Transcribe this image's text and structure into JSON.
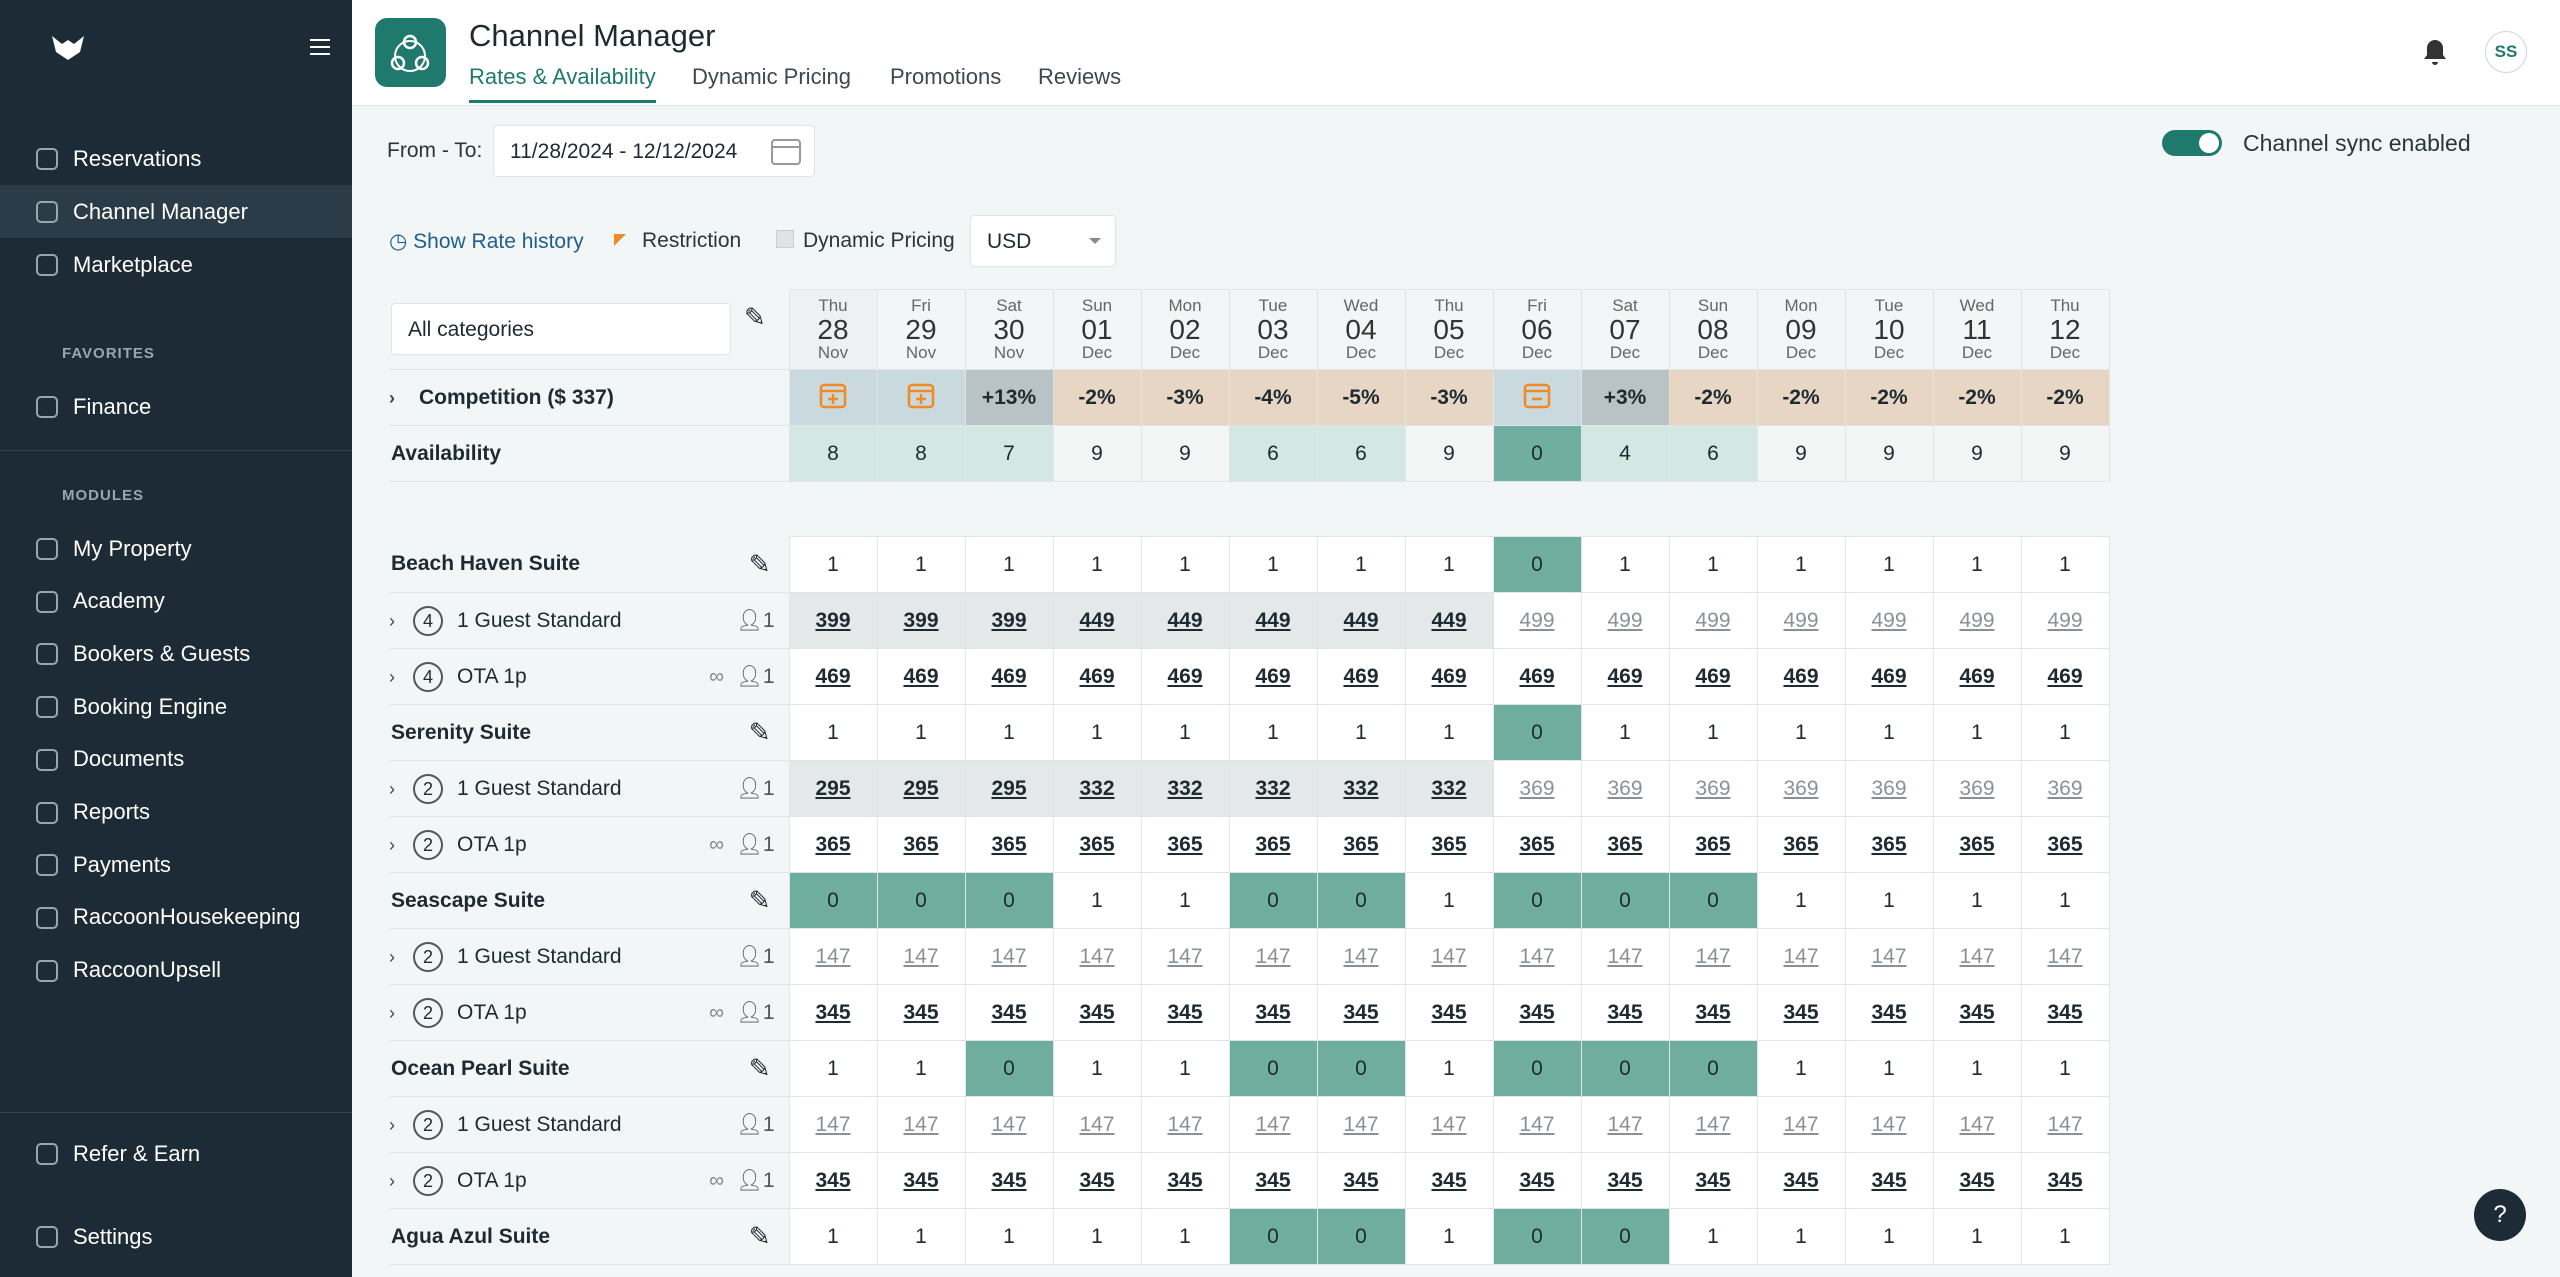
{
  "sidebar": {
    "nav": [
      "Reservations",
      "Channel Manager",
      "Marketplace"
    ],
    "favorites_label": "FAVORITES",
    "favorites": [
      "Finance"
    ],
    "modules_label": "MODULES",
    "modules": [
      "My Property",
      "Academy",
      "Bookers & Guests",
      "Booking Engine",
      "Documents",
      "Reports",
      "Payments",
      "RaccoonHousekeeping",
      "RaccoonUpsell"
    ],
    "bottom": [
      "Refer & Earn",
      "Settings"
    ]
  },
  "header": {
    "title": "Channel Manager",
    "tabs": [
      "Rates & Availability",
      "Dynamic Pricing",
      "Promotions",
      "Reviews"
    ],
    "avatar": "SS"
  },
  "toolbar": {
    "from_to_label": "From - To:",
    "date_range": "11/28/2024 - 12/12/2024",
    "sync_label": "Channel sync enabled",
    "rate_history": "Show Rate history",
    "restriction": "Restriction",
    "dynamic_pricing": "Dynamic Pricing",
    "currency": "USD",
    "category_filter": "All categories"
  },
  "grid": {
    "weekdays": [
      "Thu",
      "Fri",
      "Sat",
      "Sun",
      "Mon",
      "Tue",
      "Wed",
      "Thu",
      "Fri",
      "Sat",
      "Sun",
      "Mon",
      "Tue",
      "Wed",
      "Thu"
    ],
    "days": [
      "28",
      "29",
      "30",
      "01",
      "02",
      "03",
      "04",
      "05",
      "06",
      "07",
      "08",
      "09",
      "10",
      "11",
      "12"
    ],
    "months": [
      "Nov",
      "Nov",
      "Nov",
      "Dec",
      "Dec",
      "Dec",
      "Dec",
      "Dec",
      "Dec",
      "Dec",
      "Dec",
      "Dec",
      "Dec",
      "Dec",
      "Dec"
    ],
    "competition": {
      "label": "Competition ($ 337)",
      "values": [
        null,
        null,
        13,
        -2,
        -3,
        -4,
        -5,
        -3,
        null,
        3,
        -2,
        -2,
        -2,
        -2,
        -2
      ],
      "value_labels": [
        null,
        null,
        "+13%",
        "-2%",
        "-3%",
        "-4%",
        "-5%",
        "-3%",
        null,
        "+3%",
        "-2%",
        "-2%",
        "-2%",
        "-2%",
        "-2%"
      ]
    },
    "availability": {
      "label": "Availability",
      "values": [
        8,
        8,
        7,
        9,
        9,
        6,
        6,
        9,
        0,
        4,
        6,
        9,
        9,
        9,
        9
      ]
    },
    "rooms": [
      {
        "name": "Beach Haven Suite",
        "values": [
          1,
          1,
          1,
          1,
          1,
          1,
          1,
          1,
          0,
          1,
          1,
          1,
          1,
          1,
          1
        ],
        "rates": [
          {
            "occupancy": 4,
            "name": "1 Guest Standard",
            "guests": 1,
            "values": [
              399,
              399,
              399,
              449,
              449,
              449,
              449,
              449,
              499,
              499,
              499,
              499,
              499,
              499,
              499
            ]
          },
          {
            "occupancy": 4,
            "name": "OTA 1p",
            "guests": 1,
            "values": [
              469,
              469,
              469,
              469,
              469,
              469,
              469,
              469,
              469,
              469,
              469,
              469,
              469,
              469,
              469
            ]
          }
        ]
      },
      {
        "name": "Serenity Suite",
        "values": [
          1,
          1,
          1,
          1,
          1,
          1,
          1,
          1,
          0,
          1,
          1,
          1,
          1,
          1,
          1
        ],
        "rates": [
          {
            "occupancy": 2,
            "name": "1 Guest Standard",
            "guests": 1,
            "values": [
              295,
              295,
              295,
              332,
              332,
              332,
              332,
              332,
              369,
              369,
              369,
              369,
              369,
              369,
              369
            ]
          },
          {
            "occupancy": 2,
            "name": "OTA 1p",
            "guests": 1,
            "values": [
              365,
              365,
              365,
              365,
              365,
              365,
              365,
              365,
              365,
              365,
              365,
              365,
              365,
              365,
              365
            ]
          }
        ]
      },
      {
        "name": "Seascape Suite",
        "values": [
          0,
          0,
          0,
          1,
          1,
          0,
          0,
          1,
          0,
          0,
          0,
          1,
          1,
          1,
          1
        ],
        "rates": [
          {
            "occupancy": 2,
            "name": "1 Guest Standard",
            "guests": 1,
            "values": [
              147,
              147,
              147,
              147,
              147,
              147,
              147,
              147,
              147,
              147,
              147,
              147,
              147,
              147,
              147
            ]
          },
          {
            "occupancy": 2,
            "name": "OTA 1p",
            "guests": 1,
            "values": [
              345,
              345,
              345,
              345,
              345,
              345,
              345,
              345,
              345,
              345,
              345,
              345,
              345,
              345,
              345
            ]
          }
        ]
      },
      {
        "name": "Ocean Pearl Suite",
        "values": [
          1,
          1,
          0,
          1,
          1,
          0,
          0,
          1,
          0,
          0,
          0,
          1,
          1,
          1,
          1
        ],
        "rates": [
          {
            "occupancy": 2,
            "name": "1 Guest Standard",
            "guests": 1,
            "values": [
              147,
              147,
              147,
              147,
              147,
              147,
              147,
              147,
              147,
              147,
              147,
              147,
              147,
              147,
              147
            ]
          },
          {
            "occupancy": 2,
            "name": "OTA 1p",
            "guests": 1,
            "values": [
              345,
              345,
              345,
              345,
              345,
              345,
              345,
              345,
              345,
              345,
              345,
              345,
              345,
              345,
              345
            ]
          }
        ]
      },
      {
        "name": "Agua Azul Suite",
        "values": [
          1,
          1,
          1,
          1,
          1,
          0,
          0,
          1,
          0,
          0,
          1,
          1,
          1,
          1,
          1
        ],
        "rates": []
      }
    ]
  }
}
